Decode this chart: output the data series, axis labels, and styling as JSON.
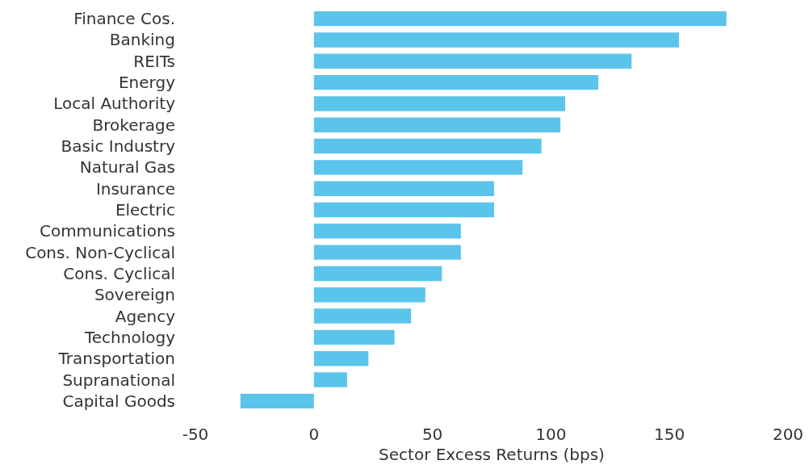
{
  "chart_data": {
    "type": "bar",
    "orientation": "horizontal",
    "xlabel": "Sector Excess Returns (bps)",
    "categories": [
      "Finance Cos.",
      "Banking",
      "REITs",
      "Energy",
      "Local Authority",
      "Brokerage",
      "Basic Industry",
      "Natural Gas",
      "Insurance",
      "Electric",
      "Communications",
      "Cons. Non-Cyclical",
      "Cons. Cyclical",
      "Sovereign",
      "Agency",
      "Technology",
      "Transportation",
      "Supranational",
      "Capital Goods"
    ],
    "values": [
      174,
      154,
      134,
      120,
      106,
      104,
      96,
      88,
      76,
      76,
      62,
      62,
      54,
      47,
      41,
      34,
      23,
      14,
      -31
    ],
    "color": "#5bc4ea",
    "xlim": [
      -50,
      200
    ],
    "xticks": [
      -50,
      0,
      50,
      100,
      150,
      200
    ]
  }
}
